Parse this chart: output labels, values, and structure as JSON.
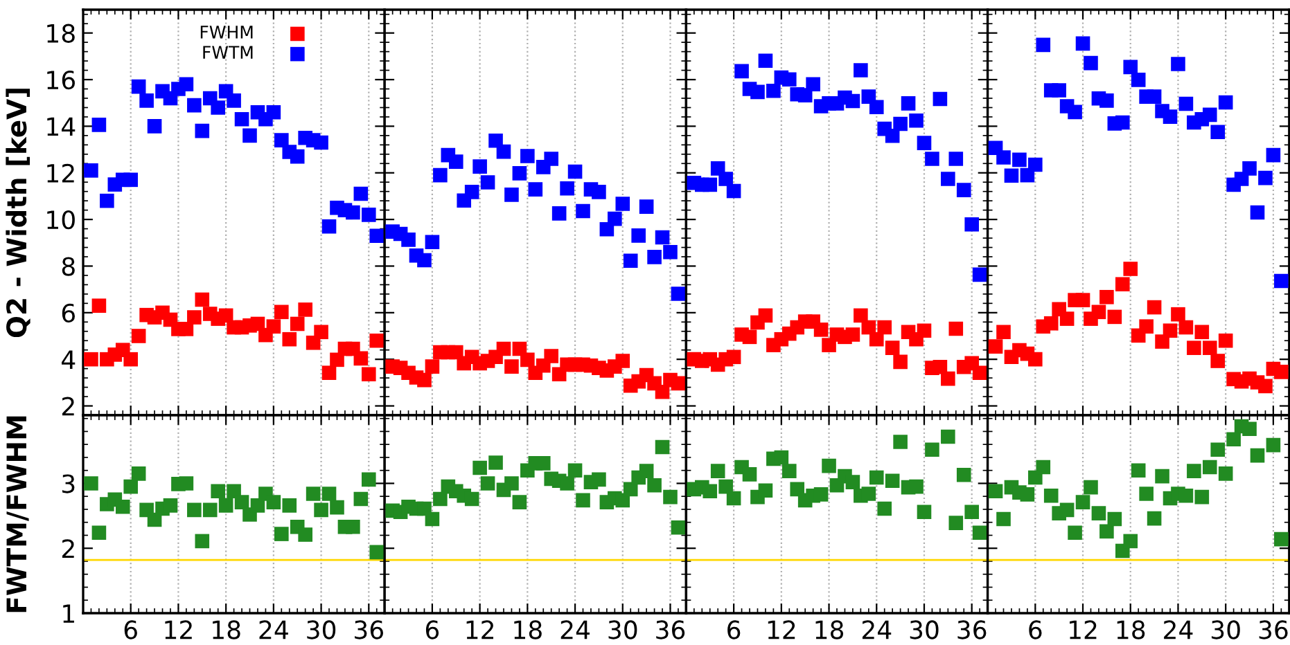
{
  "chart_data": [
    {
      "type": "scatter",
      "ylabel": "Q2 - Width [keV]",
      "x": [
        1,
        2,
        3,
        4,
        5,
        6,
        7,
        8,
        9,
        10,
        11,
        12,
        13,
        14,
        15,
        16,
        17,
        18,
        19,
        20,
        21,
        22,
        23,
        24,
        25,
        26,
        27,
        28,
        29,
        30,
        31,
        32,
        33,
        34,
        35,
        36,
        37
      ],
      "xlim": [
        0,
        38
      ],
      "xticks": [
        6,
        12,
        18,
        24,
        30,
        36
      ],
      "ylim": [
        1.6,
        19
      ],
      "yticks": [
        2,
        4,
        6,
        8,
        10,
        12,
        14,
        16,
        18
      ],
      "tick_labels": "y",
      "grid": "x",
      "marker": "square",
      "legend": "top right",
      "series": [
        {
          "name": "FWHM",
          "color": "#ff0000",
          "values": [
            4.0,
            6.3,
            4.0,
            4.2,
            4.4,
            4.0,
            5.0,
            5.9,
            5.8,
            6.0,
            5.7,
            5.3,
            5.3,
            5.8,
            6.56,
            5.95,
            5.74,
            5.88,
            5.37,
            5.37,
            5.45,
            5.52,
            5.04,
            5.41,
            6.03,
            4.86,
            5.52,
            6.13,
            4.71,
            5.17,
            3.42,
            3.98,
            4.45,
            4.45,
            4.04,
            3.36,
            4.8
          ]
        },
        {
          "name": "FWTM",
          "color": "#0000ff",
          "values": [
            12.1,
            14.06,
            10.8,
            11.5,
            11.7,
            11.7,
            15.7,
            15.1,
            14.0,
            15.5,
            15.2,
            15.6,
            15.8,
            14.9,
            13.8,
            15.2,
            14.8,
            15.5,
            15.1,
            14.3,
            13.6,
            14.6,
            14.3,
            14.6,
            13.4,
            12.9,
            12.7,
            13.5,
            13.4,
            13.3,
            9.7,
            10.5,
            10.4,
            10.3,
            11.1,
            10.2,
            9.3
          ]
        }
      ]
    },
    {
      "type": "scatter",
      "x": [
        1,
        2,
        3,
        4,
        5,
        6,
        7,
        8,
        9,
        10,
        11,
        12,
        13,
        14,
        15,
        16,
        17,
        18,
        19,
        20,
        21,
        22,
        23,
        24,
        25,
        26,
        27,
        28,
        29,
        30,
        31,
        32,
        33,
        34,
        35,
        36,
        37
      ],
      "xlim": [
        0,
        38
      ],
      "xticks": [
        6,
        12,
        18,
        24,
        30,
        36
      ],
      "ylim": [
        1.6,
        19
      ],
      "yticks": [
        2,
        4,
        6,
        8,
        10,
        12,
        14,
        16,
        18
      ],
      "tick_labels": false,
      "grid": "x",
      "marker": "square",
      "series": [
        {
          "color": "#ff0000",
          "values": [
            3.69,
            3.63,
            3.42,
            3.22,
            3.11,
            3.69,
            4.3,
            4.3,
            4.3,
            3.83,
            4.1,
            3.83,
            3.93,
            4.1,
            4.45,
            3.69,
            4.45,
            3.98,
            3.42,
            3.73,
            4.14,
            3.36,
            3.77,
            3.77,
            3.77,
            3.73,
            3.63,
            3.52,
            3.69,
            3.93,
            2.87,
            3.05,
            3.32,
            2.97,
            2.6,
            3.11,
            2.97
          ]
        },
        {
          "color": "#0000ff",
          "values": [
            9.48,
            9.38,
            9.13,
            8.45,
            8.25,
            9.03,
            11.9,
            12.76,
            12.48,
            10.81,
            11.18,
            12.27,
            11.59,
            13.38,
            12.91,
            11.06,
            11.98,
            12.72,
            11.29,
            12.25,
            12.6,
            10.26,
            11.33,
            12.05,
            10.36,
            11.29,
            11.18,
            9.58,
            10.03,
            10.67,
            8.23,
            9.31,
            10.55,
            8.39,
            9.23,
            8.6,
            6.81
          ]
        }
      ]
    },
    {
      "type": "scatter",
      "x": [
        1,
        2,
        3,
        4,
        5,
        6,
        7,
        8,
        9,
        10,
        11,
        12,
        13,
        14,
        15,
        16,
        17,
        18,
        19,
        20,
        21,
        22,
        23,
        24,
        25,
        26,
        27,
        28,
        29,
        30,
        31,
        32,
        33,
        34,
        35,
        36,
        37
      ],
      "xlim": [
        0,
        38
      ],
      "xticks": [
        6,
        12,
        18,
        24,
        30,
        36
      ],
      "ylim": [
        1.6,
        19
      ],
      "yticks": [
        2,
        4,
        6,
        8,
        10,
        12,
        14,
        16,
        18
      ],
      "tick_labels": false,
      "grid": "x",
      "marker": "square",
      "series": [
        {
          "color": "#ff0000",
          "values": [
            4.0,
            3.93,
            4.0,
            3.77,
            4.0,
            4.1,
            5.06,
            4.96,
            5.58,
            5.88,
            4.61,
            4.86,
            5.1,
            5.37,
            5.62,
            5.62,
            5.27,
            4.61,
            5.06,
            4.96,
            5.06,
            5.88,
            5.37,
            4.86,
            5.37,
            4.49,
            3.89,
            5.17,
            4.86,
            5.23,
            3.63,
            3.67,
            3.17,
            5.31,
            3.67,
            3.83,
            3.42
          ]
        },
        {
          "color": "#0000ff",
          "values": [
            11.57,
            11.49,
            11.49,
            12.19,
            11.74,
            11.22,
            16.36,
            15.6,
            15.47,
            16.81,
            15.52,
            16.09,
            16.01,
            15.37,
            15.33,
            15.8,
            14.86,
            14.98,
            14.98,
            15.23,
            15.08,
            16.4,
            15.27,
            14.82,
            13.89,
            13.59,
            14.1,
            14.98,
            14.24,
            13.28,
            12.6,
            15.17,
            11.74,
            12.6,
            11.26,
            9.79,
            7.63
          ]
        }
      ]
    },
    {
      "type": "scatter",
      "x": [
        1,
        2,
        3,
        4,
        5,
        6,
        7,
        8,
        9,
        10,
        11,
        12,
        13,
        14,
        15,
        16,
        17,
        18,
        19,
        20,
        21,
        22,
        23,
        24,
        25,
        26,
        27,
        28,
        29,
        30,
        31,
        32,
        33,
        34,
        35,
        36,
        37
      ],
      "xlim": [
        0,
        38
      ],
      "xticks": [
        6,
        12,
        18,
        24,
        30,
        36
      ],
      "ylim": [
        1.6,
        19
      ],
      "yticks": [
        2,
        4,
        6,
        8,
        10,
        12,
        14,
        16,
        18
      ],
      "tick_labels": false,
      "grid": "x",
      "marker": "square",
      "series": [
        {
          "color": "#ff0000",
          "values": [
            4.55,
            5.17,
            4.1,
            4.39,
            4.24,
            4.0,
            5.41,
            5.54,
            6.15,
            5.74,
            6.54,
            6.54,
            5.74,
            6.03,
            6.67,
            5.82,
            7.22,
            7.88,
            5.02,
            5.41,
            6.23,
            4.76,
            5.23,
            5.93,
            5.37,
            4.49,
            5.17,
            4.49,
            3.93,
            4.8,
            3.15,
            3.05,
            3.17,
            3.01,
            2.85,
            3.59,
            3.46
          ]
        },
        {
          "color": "#0000ff",
          "values": [
            13.07,
            12.66,
            11.88,
            12.56,
            11.9,
            12.35,
            17.49,
            15.54,
            15.54,
            14.86,
            14.61,
            17.55,
            16.71,
            15.19,
            15.1,
            14.12,
            14.16,
            16.54,
            15.99,
            15.27,
            15.27,
            14.65,
            14.41,
            16.67,
            14.96,
            14.16,
            14.3,
            14.49,
            13.75,
            15.02,
            11.49,
            11.74,
            12.19,
            10.3,
            11.78,
            12.76,
            7.36
          ]
        }
      ]
    },
    {
      "type": "scatter",
      "ylabel": "FWTM/FWHM",
      "x": [
        1,
        2,
        3,
        4,
        5,
        6,
        7,
        8,
        9,
        10,
        11,
        12,
        13,
        14,
        15,
        16,
        17,
        18,
        19,
        20,
        21,
        22,
        23,
        24,
        25,
        26,
        27,
        28,
        29,
        30,
        31,
        32,
        33,
        34,
        35,
        36,
        37
      ],
      "xlim": [
        0,
        38
      ],
      "xticks": [
        6,
        12,
        18,
        24,
        30,
        36
      ],
      "ylim": [
        1,
        4.05
      ],
      "yticks": [
        1,
        2,
        3
      ],
      "grid": "x",
      "marker": "square",
      "ref_lines": [
        {
          "axis": "y",
          "value": 1.82,
          "color": "#ffd700"
        }
      ],
      "series": [
        {
          "color": "#228b22",
          "values": [
            3.0,
            2.24,
            2.68,
            2.75,
            2.64,
            2.95,
            3.15,
            2.59,
            2.44,
            2.61,
            2.66,
            2.99,
            3.0,
            2.59,
            2.11,
            2.59,
            2.88,
            2.66,
            2.88,
            2.71,
            2.52,
            2.66,
            2.84,
            2.71,
            2.22,
            2.66,
            2.33,
            2.21,
            2.84,
            2.59,
            2.84,
            2.63,
            2.33,
            2.33,
            2.76,
            3.06,
            1.94
          ]
        }
      ]
    },
    {
      "type": "scatter",
      "x": [
        1,
        2,
        3,
        4,
        5,
        6,
        7,
        8,
        9,
        10,
        11,
        12,
        13,
        14,
        15,
        16,
        17,
        18,
        19,
        20,
        21,
        22,
        23,
        24,
        25,
        26,
        27,
        28,
        29,
        30,
        31,
        32,
        33,
        34,
        35,
        36,
        37
      ],
      "xlim": [
        0,
        38
      ],
      "xticks": [
        6,
        12,
        18,
        24,
        30,
        36
      ],
      "ylim": [
        1,
        4.05
      ],
      "yticks": [
        1,
        2,
        3
      ],
      "tick_labels": "x",
      "grid": "x",
      "marker": "square",
      "ref_lines": [
        {
          "axis": "y",
          "value": 1.82,
          "color": "#ffd700"
        }
      ],
      "series": [
        {
          "color": "#228b22",
          "values": [
            2.58,
            2.56,
            2.64,
            2.61,
            2.61,
            2.45,
            2.76,
            2.95,
            2.88,
            2.81,
            2.76,
            3.24,
            3.0,
            3.32,
            2.9,
            3.0,
            2.71,
            3.2,
            3.31,
            3.31,
            3.07,
            3.04,
            3.0,
            3.2,
            2.74,
            3.02,
            3.06,
            2.71,
            2.77,
            2.74,
            2.91,
            3.09,
            3.19,
            2.97,
            3.56,
            2.79,
            2.32
          ]
        }
      ]
    },
    {
      "type": "scatter",
      "x": [
        1,
        2,
        3,
        4,
        5,
        6,
        7,
        8,
        9,
        10,
        11,
        12,
        13,
        14,
        15,
        16,
        17,
        18,
        19,
        20,
        21,
        22,
        23,
        24,
        25,
        26,
        27,
        28,
        29,
        30,
        31,
        32,
        33,
        34,
        35,
        36,
        37
      ],
      "xlim": [
        0,
        38
      ],
      "xticks": [
        6,
        12,
        18,
        24,
        30,
        36
      ],
      "ylim": [
        1,
        4.05
      ],
      "yticks": [
        1,
        2,
        3
      ],
      "tick_labels": "x",
      "grid": "x",
      "marker": "square",
      "ref_lines": [
        {
          "axis": "y",
          "value": 1.82,
          "color": "#ffd700"
        }
      ],
      "series": [
        {
          "color": "#228b22",
          "values": [
            2.91,
            2.94,
            2.88,
            3.19,
            2.95,
            2.77,
            3.25,
            3.14,
            2.79,
            2.89,
            3.38,
            3.4,
            3.19,
            2.91,
            2.74,
            2.81,
            2.83,
            3.27,
            2.97,
            3.11,
            3.02,
            2.81,
            2.84,
            3.09,
            2.61,
            3.04,
            3.64,
            2.94,
            2.95,
            2.56,
            3.52,
            null,
            3.72,
            2.39,
            3.13,
            2.56,
            2.24
          ]
        }
      ]
    },
    {
      "type": "scatter",
      "x": [
        1,
        2,
        3,
        4,
        5,
        6,
        7,
        8,
        9,
        10,
        11,
        12,
        13,
        14,
        15,
        16,
        17,
        18,
        19,
        20,
        21,
        22,
        23,
        24,
        25,
        26,
        27,
        28,
        29,
        30,
        31,
        32,
        33,
        34,
        35,
        36,
        37
      ],
      "xlim": [
        0,
        38
      ],
      "xticks": [
        6,
        12,
        18,
        24,
        30,
        36
      ],
      "ylim": [
        1,
        4.05
      ],
      "yticks": [
        1,
        2,
        3
      ],
      "tick_labels": "x",
      "grid": "x",
      "marker": "square",
      "ref_lines": [
        {
          "axis": "y",
          "value": 1.82,
          "color": "#ffd700"
        }
      ],
      "series": [
        {
          "color": "#228b22",
          "values": [
            2.88,
            2.45,
            2.94,
            2.86,
            2.83,
            3.09,
            3.25,
            2.81,
            2.54,
            2.59,
            2.24,
            2.71,
            2.94,
            2.54,
            2.26,
            2.45,
            1.96,
            2.11,
            3.2,
            2.84,
            2.46,
            3.11,
            2.77,
            2.84,
            2.81,
            3.19,
            2.79,
            3.25,
            3.52,
            3.15,
            3.68,
            3.88,
            3.84,
            3.43,
            null,
            3.59,
            2.14
          ]
        }
      ]
    }
  ]
}
